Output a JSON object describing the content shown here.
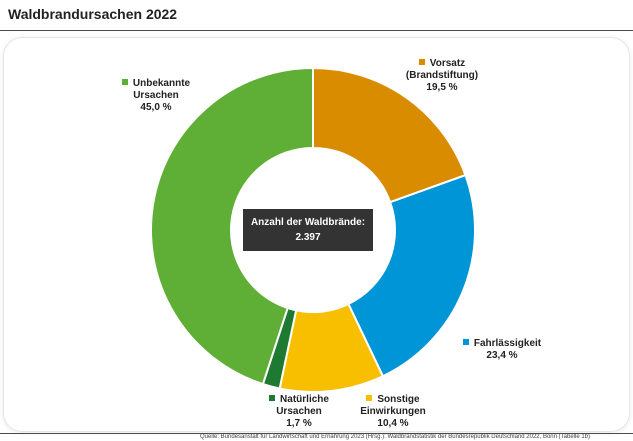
{
  "title": "Waldbrandursachen 2022",
  "center_box": {
    "line1": "Anzahl der Waldbrände:",
    "line2": "2.397"
  },
  "source": "Quelle: Bundesanstalt für Landwirtschaft und Ernährung 2023 (Hrsg.): Waldbrandstatistik der Bundesrepublik Deutschland 2022, Bonn (Tabelle 1b)",
  "chart_data": {
    "type": "pie",
    "donut": true,
    "title": "Waldbrandursachen 2022",
    "total_label": "Anzahl der Waldbrände:",
    "total": 2397,
    "slices": [
      {
        "line1": "Vorsatz",
        "line2": "(Brandstiftung)",
        "value": 19.5,
        "value_label": "19,5 %",
        "color": "#d98c00"
      },
      {
        "line1": "Fahrlässigkeit",
        "line2": "",
        "value": 23.4,
        "value_label": "23,4 %",
        "color": "#0095d6"
      },
      {
        "line1": "Sonstige",
        "line2": "Einwirkungen",
        "value": 10.4,
        "value_label": "10,4 %",
        "color": "#f7bf00"
      },
      {
        "line1": "Natürliche",
        "line2": "Ursachen",
        "value": 1.7,
        "value_label": "1,7 %",
        "color": "#1d7a30"
      },
      {
        "line1": "Unbekannte",
        "line2": "Ursachen",
        "value": 45.0,
        "value_label": "45,0 %",
        "color": "#5fae35"
      }
    ]
  }
}
